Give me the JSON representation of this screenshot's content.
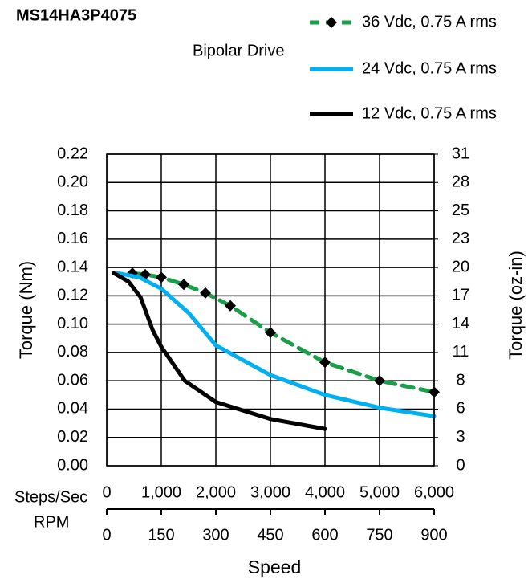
{
  "chart_data": {
    "type": "line",
    "title": "MS14HA3P4075",
    "subtitle": "Bipolar Drive",
    "xlabel": "Speed",
    "ylabel": "Torque (Nm)",
    "y2label": "Torque (oz-in)",
    "x_axis_label": "Steps/Sec",
    "xlim": [
      0,
      6000
    ],
    "xticks": [
      0,
      {
        "value": 1000,
        "label": "1,000"
      },
      {
        "value": 2000,
        "label": "2,000"
      },
      {
        "value": 3000,
        "label": "3,000"
      },
      {
        "value": 4000,
        "label": "4,000"
      },
      {
        "value": 5000,
        "label": "5,000"
      },
      {
        "value": 6000,
        "label": "6,000"
      }
    ],
    "rpm_axis": {
      "label": "RPM",
      "lim": [
        0,
        900
      ],
      "ticks": [
        0,
        150,
        300,
        450,
        600,
        750,
        900
      ]
    },
    "ylim": [
      0,
      0.22
    ],
    "yticks": [
      {
        "value": 0,
        "label": "0.00"
      },
      0.02,
      0.04,
      0.06,
      0.08,
      {
        "value": 0.1,
        "label": "0.10"
      },
      0.12,
      0.14,
      0.16,
      0.18,
      {
        "value": 0.2,
        "label": "0.20"
      },
      0.22
    ],
    "y2lim": [
      0,
      31.155
    ],
    "y2ticks": [
      0,
      {
        "value": 2.832,
        "label": "3"
      },
      {
        "value": 5.664,
        "label": "6"
      },
      {
        "value": 8.497,
        "label": "8"
      },
      {
        "value": 11.329,
        "label": "11"
      },
      {
        "value": 14.161,
        "label": "14"
      },
      {
        "value": 16.993,
        "label": "17"
      },
      {
        "value": 19.826,
        "label": "20"
      },
      {
        "value": 22.658,
        "label": "23"
      },
      {
        "value": 25.49,
        "label": "25"
      },
      {
        "value": 28.322,
        "label": "28"
      },
      {
        "value": 31.155,
        "label": "31"
      }
    ],
    "grid": true,
    "series": [
      {
        "name": "36 Vdc, 0.75 A rms",
        "color": "#1a9e4a",
        "dashed": true,
        "marker": "diamond",
        "x": [
          470,
          706,
          1000,
          1412,
          1809,
          2265,
          3000,
          4000,
          5000,
          6000
        ],
        "values": [
          0.136,
          0.135,
          0.133,
          0.128,
          0.122,
          0.113,
          0.094,
          0.073,
          0.06,
          0.052
        ]
      },
      {
        "name": "24 Vdc, 0.75 A rms",
        "color": "#00b0f0",
        "x": [
          200,
          600,
          1000,
          1500,
          2000,
          3000,
          4000,
          5000,
          6000
        ],
        "values": [
          0.136,
          0.133,
          0.125,
          0.108,
          0.085,
          0.064,
          0.05,
          0.041,
          0.035
        ]
      },
      {
        "name": "12 Vdc, 0.75 A rms",
        "color": "#000000",
        "x": [
          130,
          400,
          620,
          840,
          1000,
          1430,
          2000,
          3000,
          4000
        ],
        "values": [
          0.136,
          0.13,
          0.119,
          0.096,
          0.084,
          0.06,
          0.045,
          0.033,
          0.026
        ]
      }
    ]
  }
}
